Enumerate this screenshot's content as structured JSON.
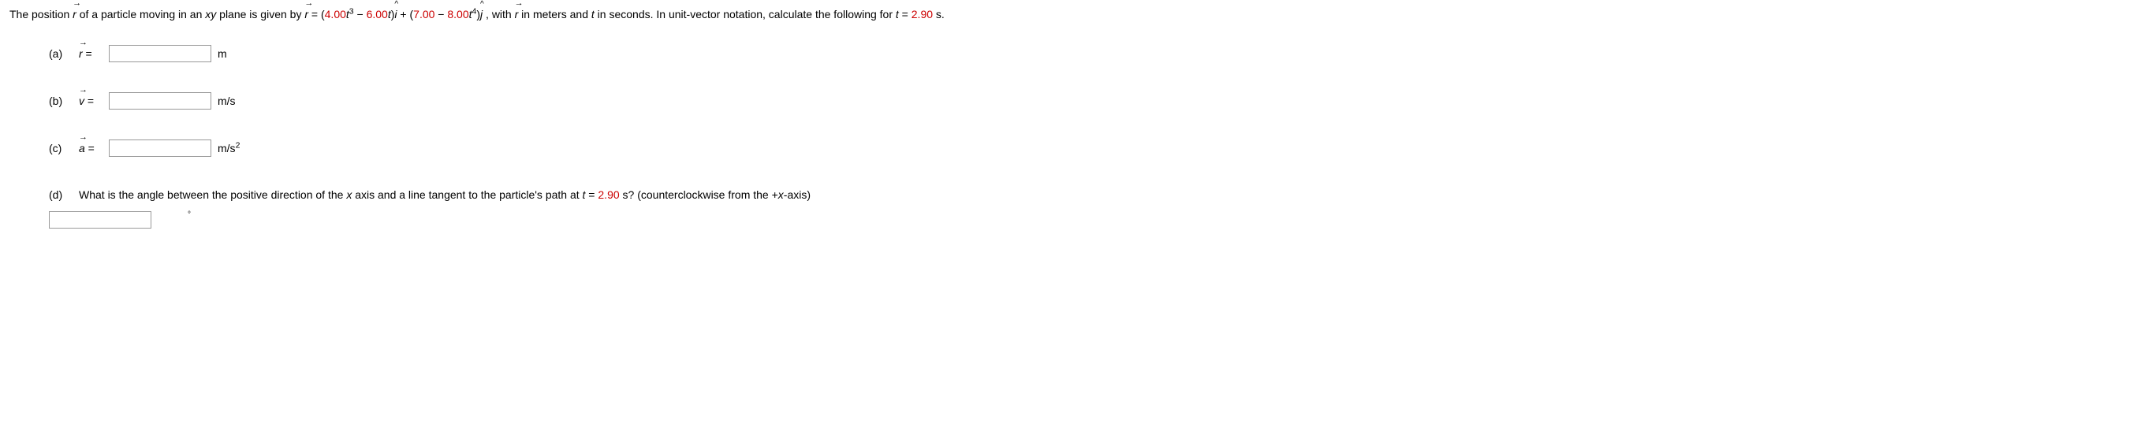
{
  "problem": {
    "intro_a": "The position ",
    "vec_r": "r",
    "intro_b": " of a particle moving in an ",
    "xy": "xy",
    "intro_c": " plane is given by ",
    "eq_lhs_var": "r",
    "eq_equals": " = (",
    "coef1": "4.00",
    "t_var": "t",
    "exp3": "3",
    "minus": " − ",
    "coef2": "6.00",
    "close_i": ")",
    "i_hat": "i",
    "plus": " + (",
    "coef3": "7.00",
    "coef4": "8.00",
    "exp4": "4",
    "close_j": ")",
    "j_hat": "j",
    "intro_d": " , with ",
    "intro_e": " in meters and ",
    "intro_f": " in seconds. In unit-vector notation, calculate the following for ",
    "t_eq": " = ",
    "t_val": "2.90",
    "s_unit": " s."
  },
  "parts": {
    "a": {
      "label": "(a)",
      "var": "r",
      "eq": " =",
      "unit": "m"
    },
    "b": {
      "label": "(b)",
      "var": "v",
      "eq": " =",
      "unit": "m/s"
    },
    "c": {
      "label": "(c)",
      "var": "a",
      "eq": " =",
      "unit_base": "m/s",
      "unit_exp": "2"
    },
    "d": {
      "label": "(d)",
      "text_a": "What is the angle between the positive direction of the ",
      "x_var": "x",
      "text_b": " axis and a line tangent to the particle's path at ",
      "t_var": "t",
      "t_eq": " = ",
      "t_val": "2.90",
      "text_c": " s? (counterclockwise from the +",
      "text_d": "-axis)",
      "degree": "°"
    }
  },
  "styling": {
    "red_color": "#cc0000",
    "text_color": "#000000",
    "background": "#ffffff",
    "input_border": "#999999",
    "font_family": "Verdana",
    "base_fontsize": 14
  }
}
